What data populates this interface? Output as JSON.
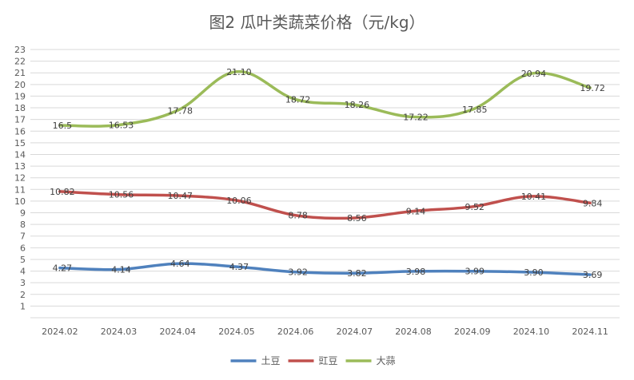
{
  "chart_data": {
    "type": "line",
    "title": "图2  瓜叶类蔬菜价格（元/kg）",
    "categories": [
      "2024.02",
      "2024.03",
      "2024.04",
      "2024.05",
      "2024.06",
      "2024.07",
      "2024.08",
      "2024.09",
      "2024.10",
      "2024.11"
    ],
    "yticks": [
      "1",
      "2",
      "3",
      "4",
      "5",
      "6",
      "7",
      "8",
      "9",
      "10",
      "11",
      "12",
      "13",
      "14",
      "15",
      "16",
      "17",
      "18",
      "19",
      "20",
      "21",
      "22",
      "23"
    ],
    "ylim": [
      0,
      23
    ],
    "grid": true,
    "legend_position": "bottom",
    "series": [
      {
        "name": "土豆",
        "color": "#4f81bd",
        "values": [
          4.27,
          4.14,
          4.64,
          4.37,
          3.92,
          3.82,
          3.98,
          3.99,
          3.9,
          3.69
        ],
        "labels": [
          "4.27",
          "4.14",
          "4.64",
          "4.37",
          "3.92",
          "3.82",
          "3.98",
          "3.99",
          "3.90",
          "3.69"
        ]
      },
      {
        "name": "豇豆",
        "color": "#c0504d",
        "values": [
          10.82,
          10.56,
          10.47,
          10.06,
          8.78,
          8.56,
          9.14,
          9.52,
          10.41,
          9.84
        ],
        "labels": [
          "10.82",
          "10.56",
          "10.47",
          "10.06",
          "8.78",
          "8.56",
          "9.14",
          "9.52",
          "10.41",
          "9.84"
        ]
      },
      {
        "name": "大蒜",
        "color": "#9bbb59",
        "values": [
          16.5,
          16.53,
          17.78,
          21.1,
          18.72,
          18.26,
          17.22,
          17.85,
          20.94,
          19.72
        ],
        "labels": [
          "16.5",
          "16.53",
          "17.78",
          "21.10",
          "18.72",
          "18.26",
          "17.22",
          "17.85",
          "20.94",
          "19.72"
        ]
      }
    ]
  }
}
